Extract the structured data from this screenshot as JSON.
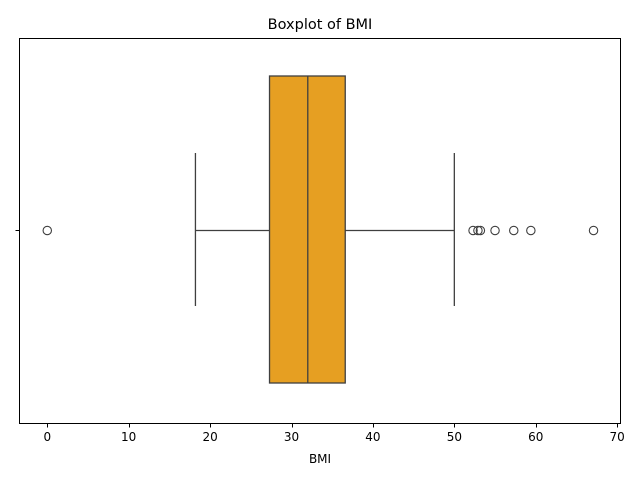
{
  "chart_data": {
    "type": "boxplot",
    "title": "Boxplot of BMI",
    "xlabel": "BMI",
    "ylabel": "",
    "orientation": "horizontal",
    "xlim": [
      -3.35,
      70.35
    ],
    "x_ticks": [
      0,
      10,
      20,
      30,
      40,
      50,
      60,
      70
    ],
    "grid": false,
    "legend": "none",
    "box": {
      "whisker_low": 18.2,
      "q1": 27.3,
      "median": 32.0,
      "q3": 36.6,
      "whisker_high": 50.0
    },
    "outliers": [
      0,
      52.3,
      52.9,
      53.2,
      55.0,
      57.3,
      59.4,
      67.1
    ],
    "colors": {
      "box_fill": "#e69f22",
      "line": "#3f3f3f",
      "axis": "#000000"
    }
  }
}
